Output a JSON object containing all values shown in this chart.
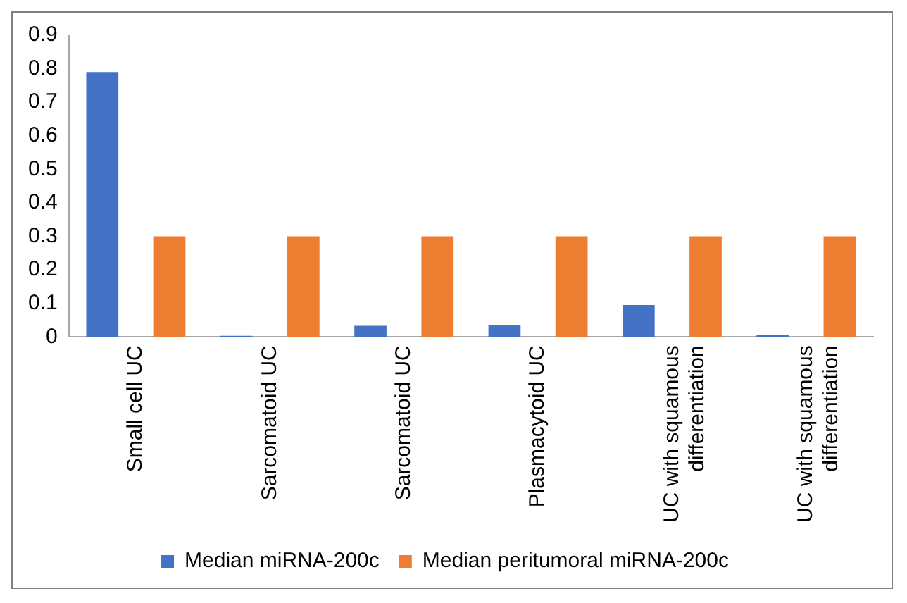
{
  "chart_data": {
    "type": "bar",
    "categories": [
      "Small cell UC",
      "Sarcomatoid UC",
      "Sarcomatoid UC",
      "Plasmacytoid UC",
      "UC with squamous differentiation",
      "UC with squamous differentiation"
    ],
    "series": [
      {
        "name": "Median miRNA-200c",
        "color": "#4472c4",
        "values": [
          0.79,
          0.003,
          0.033,
          0.036,
          0.095,
          0.005
        ]
      },
      {
        "name": "Median peritumoral miRNA-200c",
        "color": "#ed7d31",
        "values": [
          0.3,
          0.3,
          0.3,
          0.3,
          0.3,
          0.3
        ]
      }
    ],
    "ylim": [
      0,
      0.9
    ],
    "yticks": [
      0,
      0.1,
      0.2,
      0.3,
      0.4,
      0.5,
      0.6,
      0.7,
      0.8,
      0.9
    ],
    "grid": false,
    "legend": "bottom"
  }
}
